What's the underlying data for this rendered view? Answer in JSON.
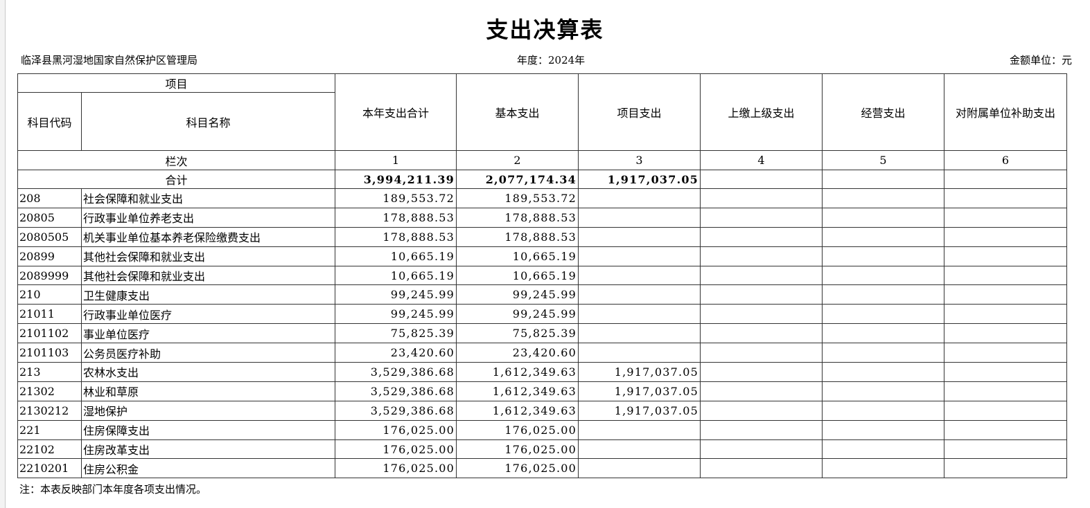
{
  "title": "支出决算表",
  "unit_name": "临泽县黑河湿地国家自然保护区管理局",
  "year": "年度：2024年",
  "currency_unit": "金额单位：元",
  "header": {
    "item": "项目",
    "code": "科目代码",
    "name": "科目名称",
    "columns": [
      "本年支出合计",
      "基本支出",
      "项目支出",
      "上缴上级支出",
      "经营支出",
      "对附属单位补助支出"
    ],
    "column_index_label": "栏次",
    "column_numbers": [
      "1",
      "2",
      "3",
      "4",
      "5",
      "6"
    ]
  },
  "total": {
    "label": "合计",
    "values": [
      "3,994,211.39",
      "2,077,174.34",
      "1,917,037.05",
      "",
      "",
      ""
    ]
  },
  "rows": [
    {
      "code": "208",
      "name": "社会保障和就业支出",
      "values": [
        "189,553.72",
        "189,553.72",
        "",
        "",
        "",
        ""
      ]
    },
    {
      "code": "20805",
      "name": "行政事业单位养老支出",
      "values": [
        "178,888.53",
        "178,888.53",
        "",
        "",
        "",
        ""
      ]
    },
    {
      "code": "2080505",
      "name": "机关事业单位基本养老保险缴费支出",
      "values": [
        "178,888.53",
        "178,888.53",
        "",
        "",
        "",
        ""
      ]
    },
    {
      "code": "20899",
      "name": "其他社会保障和就业支出",
      "values": [
        "10,665.19",
        "10,665.19",
        "",
        "",
        "",
        ""
      ]
    },
    {
      "code": "2089999",
      "name": "其他社会保障和就业支出",
      "values": [
        "10,665.19",
        "10,665.19",
        "",
        "",
        "",
        ""
      ]
    },
    {
      "code": "210",
      "name": "卫生健康支出",
      "values": [
        "99,245.99",
        "99,245.99",
        "",
        "",
        "",
        ""
      ]
    },
    {
      "code": "21011",
      "name": "行政事业单位医疗",
      "values": [
        "99,245.99",
        "99,245.99",
        "",
        "",
        "",
        ""
      ]
    },
    {
      "code": "2101102",
      "name": "事业单位医疗",
      "values": [
        "75,825.39",
        "75,825.39",
        "",
        "",
        "",
        ""
      ]
    },
    {
      "code": "2101103",
      "name": "公务员医疗补助",
      "values": [
        "23,420.60",
        "23,420.60",
        "",
        "",
        "",
        ""
      ]
    },
    {
      "code": "213",
      "name": "农林水支出",
      "values": [
        "3,529,386.68",
        "1,612,349.63",
        "1,917,037.05",
        "",
        "",
        ""
      ]
    },
    {
      "code": "21302",
      "name": "林业和草原",
      "values": [
        "3,529,386.68",
        "1,612,349.63",
        "1,917,037.05",
        "",
        "",
        ""
      ]
    },
    {
      "code": "2130212",
      "name": "湿地保护",
      "values": [
        "3,529,386.68",
        "1,612,349.63",
        "1,917,037.05",
        "",
        "",
        ""
      ]
    },
    {
      "code": "221",
      "name": "住房保障支出",
      "values": [
        "176,025.00",
        "176,025.00",
        "",
        "",
        "",
        ""
      ]
    },
    {
      "code": "22102",
      "name": "住房改革支出",
      "values": [
        "176,025.00",
        "176,025.00",
        "",
        "",
        "",
        ""
      ]
    },
    {
      "code": "2210201",
      "name": "住房公积金",
      "values": [
        "176,025.00",
        "176,025.00",
        "",
        "",
        "",
        ""
      ]
    }
  ],
  "note": "注：本表反映部门本年度各项支出情况。"
}
